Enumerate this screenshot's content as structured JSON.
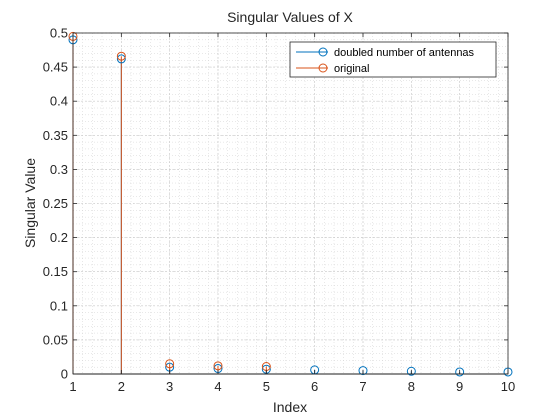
{
  "chart_data": {
    "type": "stem",
    "title": "Singular Values of X",
    "xlabel": "Index",
    "ylabel": "Singular Value",
    "xlim": [
      1,
      10
    ],
    "ylim": [
      0,
      0.5
    ],
    "xticks": [
      "1",
      "2",
      "3",
      "4",
      "5",
      "6",
      "7",
      "8",
      "9",
      "10"
    ],
    "yticks": [
      "0",
      "0.05",
      "0.1",
      "0.15",
      "0.2",
      "0.25",
      "0.3",
      "0.35",
      "0.4",
      "0.45",
      "0.5"
    ],
    "grid": "major and minor dotted",
    "legend_position": "top-right",
    "series": [
      {
        "name": "doubled number of antennas",
        "color": "#0072BD",
        "x": [
          1,
          2,
          3,
          4,
          5,
          6,
          7,
          8,
          9,
          10
        ],
        "values": [
          0.49,
          0.462,
          0.01,
          0.008,
          0.007,
          0.006,
          0.005,
          0.004,
          0.003,
          0.003
        ]
      },
      {
        "name": "original",
        "color": "#D95319",
        "x": [
          1,
          2,
          3,
          4,
          5
        ],
        "values": [
          0.495,
          0.466,
          0.015,
          0.012,
          0.011
        ]
      }
    ]
  }
}
